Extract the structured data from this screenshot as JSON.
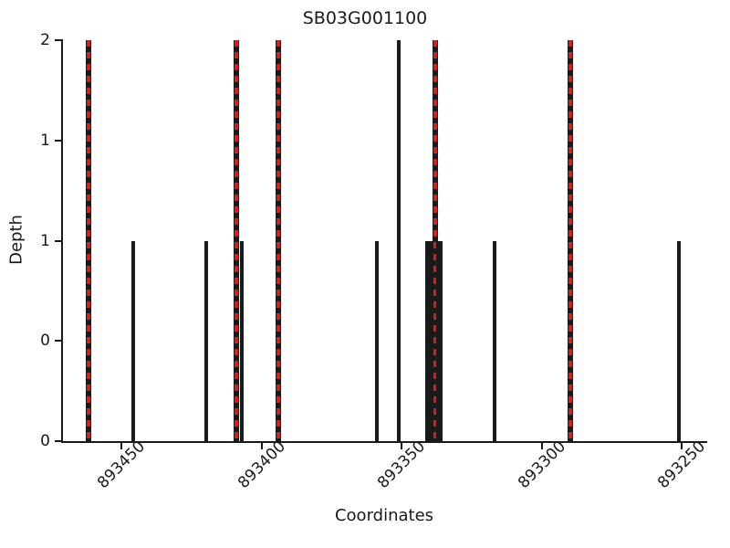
{
  "chart_data": {
    "type": "bar",
    "title": "SB03G001100",
    "xlabel": "Coordinates",
    "ylabel": "Depth",
    "legend": null,
    "grid": false,
    "x_axis": {
      "reversed": true,
      "left_value": 893471,
      "right_value": 893241,
      "ticks": [
        893450,
        893400,
        893350,
        893300,
        893250
      ],
      "tick_labels": [
        "893450",
        "893400",
        "893350",
        "893300",
        "893250"
      ]
    },
    "y_axis": {
      "min": 0,
      "max": 2,
      "ticks": [
        0,
        0.5,
        1,
        1.5,
        2
      ],
      "tick_labels": [
        "0",
        "0",
        "1",
        "1",
        "2"
      ]
    },
    "colors": {
      "bar": "#1a1a1a",
      "marked_dash": "#cf2020",
      "background": "#ffffff"
    },
    "bars": [
      {
        "coordinate": 893462,
        "depth": 2,
        "marked": true
      },
      {
        "coordinate": 893446,
        "depth": 1,
        "marked": false
      },
      {
        "coordinate": 893420,
        "depth": 1,
        "marked": false
      },
      {
        "coordinate": 893409,
        "depth": 2,
        "marked": true
      },
      {
        "coordinate": 893407,
        "depth": 1,
        "marked": false
      },
      {
        "coordinate": 893394,
        "depth": 2,
        "marked": true
      },
      {
        "coordinate": 893359,
        "depth": 1,
        "marked": false
      },
      {
        "coordinate": 893351,
        "depth": 2,
        "marked": false
      },
      {
        "coordinate": 893341,
        "depth": 1,
        "marked": false
      },
      {
        "coordinate": 893340,
        "depth": 1,
        "marked": false
      },
      {
        "coordinate": 893339,
        "depth": 1,
        "marked": false
      },
      {
        "coordinate": 893338,
        "depth": 2,
        "marked": true
      },
      {
        "coordinate": 893337,
        "depth": 1,
        "marked": false
      },
      {
        "coordinate": 893336,
        "depth": 1,
        "marked": false
      },
      {
        "coordinate": 893317,
        "depth": 1,
        "marked": false
      },
      {
        "coordinate": 893290,
        "depth": 2,
        "marked": true
      },
      {
        "coordinate": 893251,
        "depth": 1,
        "marked": false
      }
    ]
  }
}
